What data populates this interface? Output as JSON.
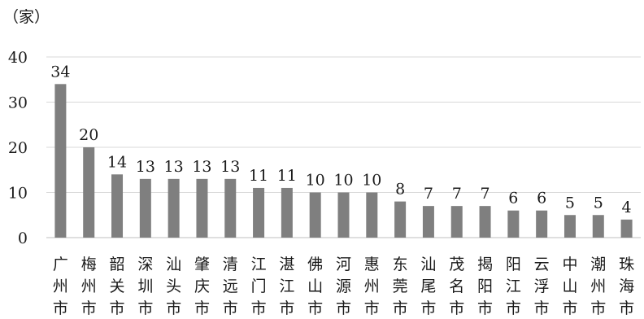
{
  "chart_data": {
    "type": "bar",
    "unit_label": "（家）",
    "title": "",
    "xlabel": "",
    "ylabel": "",
    "ylim": [
      0,
      40
    ],
    "yticks": [
      0,
      10,
      20,
      30,
      40
    ],
    "grid": true,
    "legend": "none",
    "bar_color": "#7f7f7f",
    "grid_color": "#d9d9d9",
    "categories": [
      "广州市",
      "梅州市",
      "韶关市",
      "深圳市",
      "汕头市",
      "肇庆市",
      "清远市",
      "江门市",
      "湛江市",
      "佛山市",
      "河源市",
      "惠州市",
      "东莞市",
      "汕尾市",
      "茂名市",
      "揭阳市",
      "阳江市",
      "云浮市",
      "中山市",
      "潮州市",
      "珠海市"
    ],
    "values": [
      34,
      20,
      14,
      13,
      13,
      13,
      13,
      11,
      11,
      10,
      10,
      10,
      8,
      7,
      7,
      7,
      6,
      6,
      5,
      5,
      4
    ]
  }
}
